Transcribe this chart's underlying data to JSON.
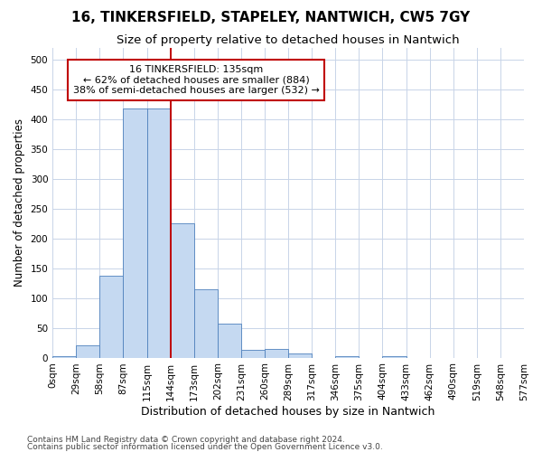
{
  "title": "16, TINKERSFIELD, STAPELEY, NANTWICH, CW5 7GY",
  "subtitle": "Size of property relative to detached houses in Nantwich",
  "xlabel": "Distribution of detached houses by size in Nantwich",
  "ylabel": "Number of detached properties",
  "footer_line1": "Contains HM Land Registry data © Crown copyright and database right 2024.",
  "footer_line2": "Contains public sector information licensed under the Open Government Licence v3.0.",
  "bin_labels": [
    "0sqm",
    "29sqm",
    "58sqm",
    "87sqm",
    "115sqm",
    "144sqm",
    "173sqm",
    "202sqm",
    "231sqm",
    "260sqm",
    "289sqm",
    "317sqm",
    "346sqm",
    "375sqm",
    "404sqm",
    "433sqm",
    "462sqm",
    "490sqm",
    "519sqm",
    "548sqm",
    "577sqm"
  ],
  "bar_values": [
    3,
    21,
    138,
    418,
    418,
    226,
    114,
    57,
    13,
    15,
    7,
    0,
    2,
    0,
    3,
    0,
    0,
    0,
    0,
    0
  ],
  "bar_color": "#c5d9f1",
  "bar_edge_color": "#4f81bd",
  "vline_x_index": 5,
  "vline_color": "#c00000",
  "annotation_line1": "16 TINKERSFIELD: 135sqm",
  "annotation_line2": "← 62% of detached houses are smaller (884)",
  "annotation_line3": "38% of semi-detached houses are larger (532) →",
  "annotation_box_color": "#ffffff",
  "annotation_box_edge": "#c00000",
  "ylim": [
    0,
    520
  ],
  "yticks": [
    0,
    50,
    100,
    150,
    200,
    250,
    300,
    350,
    400,
    450,
    500
  ],
  "background_color": "#ffffff",
  "grid_color": "#c8d4e8",
  "title_fontsize": 11,
  "subtitle_fontsize": 9.5,
  "xlabel_fontsize": 9,
  "ylabel_fontsize": 8.5,
  "tick_fontsize": 7.5,
  "annotation_fontsize": 8,
  "footer_fontsize": 6.5
}
